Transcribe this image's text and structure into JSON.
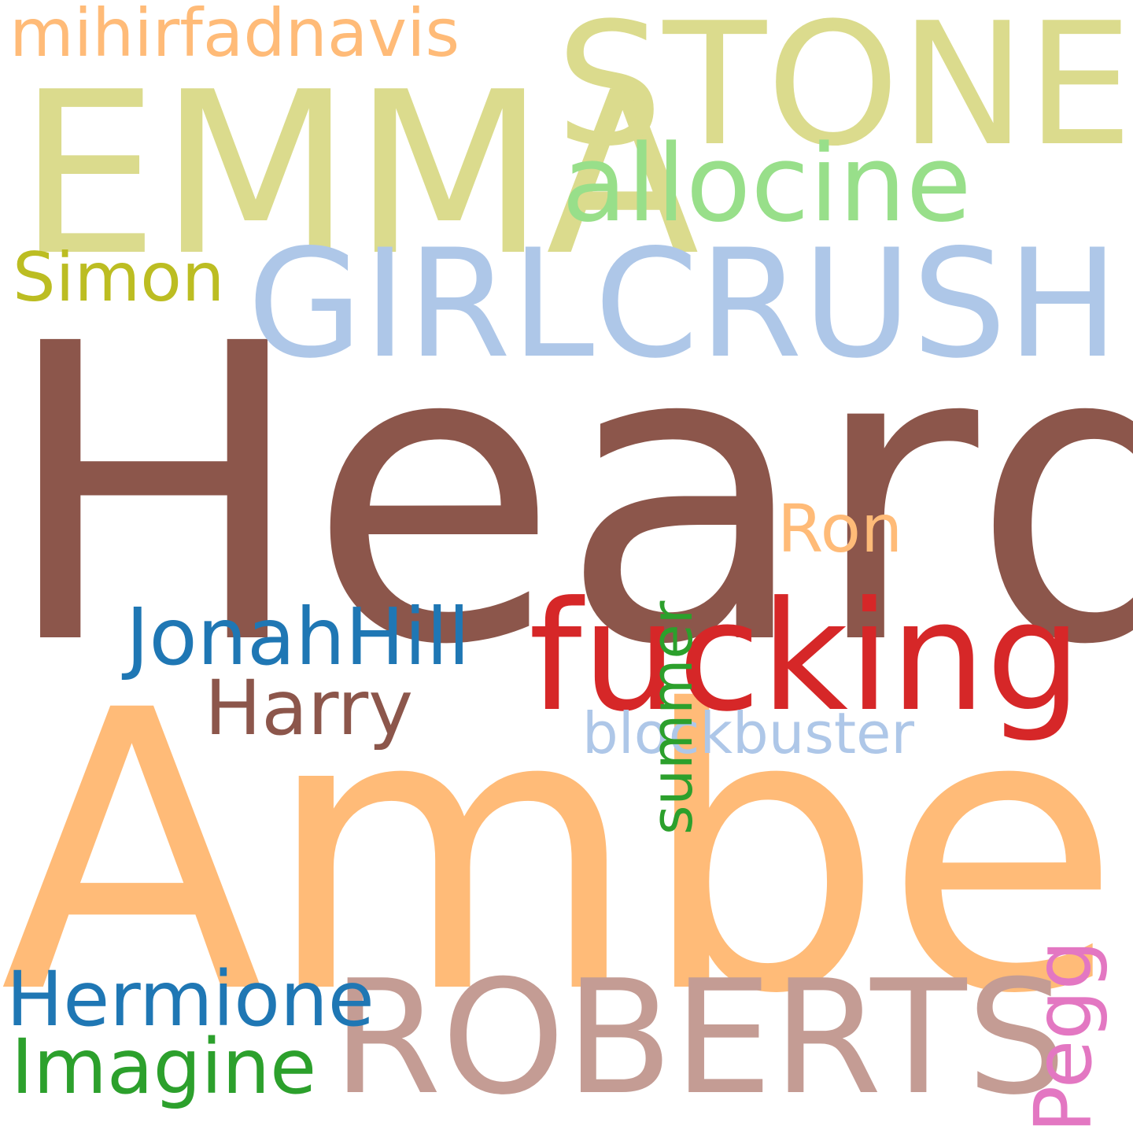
{
  "colors": {
    "background": "#ffffff",
    "brown": "#8c564b",
    "orange": "#ffbb78",
    "olive_light": "#dbdb8d",
    "blue_light": "#aec7e8",
    "rose": "#c49c94",
    "red": "#d62728",
    "green_light": "#98df8a",
    "olive": "#bcbd22",
    "blue": "#1f77b4",
    "green": "#2ca02c",
    "pink": "#e377c2"
  },
  "words": {
    "heard": "Heard",
    "amber": "Amber",
    "emma": "EMMA",
    "stone": "STONE",
    "girlcrush": "GIRLCRUSH",
    "roberts": "ROBERTS",
    "fucking": "fucking",
    "allocine": "allocine",
    "mihirfadnavis": "mihirfadnavis",
    "simon": "Simon",
    "jonahhill": "JonahHill",
    "harry": "Harry",
    "blockbuster": "blockbuster",
    "ron": "Ron",
    "summer": "summer",
    "pegg": "Pegg",
    "hermione": "Hermione",
    "imagine": "Imagine"
  }
}
